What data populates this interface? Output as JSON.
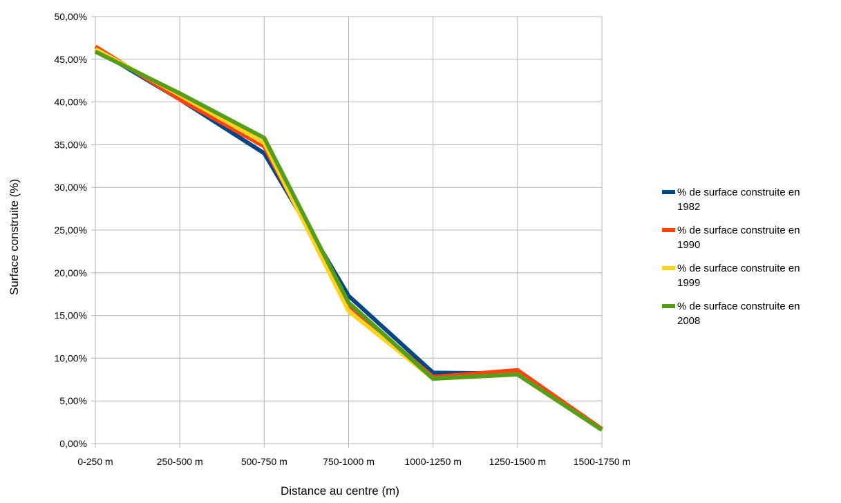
{
  "chart_data": {
    "type": "line",
    "title": "",
    "xlabel": "Distance au centre (m)",
    "ylabel": "Surface construite (%)",
    "categories": [
      "0-250 m",
      "250-500 m",
      "500-750 m",
      "750-1000 m",
      "1000-1250 m",
      "1250-1500 m",
      "1500-1750 m"
    ],
    "yticks": [
      "0,00%",
      "5,00%",
      "10,00%",
      "15,00%",
      "20,00%",
      "25,00%",
      "30,00%",
      "35,00%",
      "40,00%",
      "45,00%",
      "50,00%"
    ],
    "ylim": [
      0,
      50
    ],
    "grid": true,
    "legend_position": "right",
    "series": [
      {
        "name_line1": "% de surface construite en",
        "name_line2": "1982",
        "color": "#004586",
        "values": [
          46.2,
          40.3,
          34.0,
          17.3,
          8.3,
          8.2,
          1.6
        ]
      },
      {
        "name_line1": "% de surface construite en",
        "name_line2": "1990",
        "color": "#ff420e",
        "values": [
          46.5,
          40.3,
          34.8,
          16.2,
          7.8,
          8.6,
          1.7
        ]
      },
      {
        "name_line1": "% de surface construite en",
        "name_line2": "1999",
        "color": "#ffd320",
        "values": [
          46.2,
          40.8,
          35.2,
          15.5,
          7.6,
          8.1,
          1.6
        ]
      },
      {
        "name_line1": "% de surface construite en",
        "name_line2": "2008",
        "color": "#579d1c",
        "values": [
          45.9,
          41.0,
          35.8,
          16.5,
          7.6,
          8.1,
          1.6
        ]
      }
    ]
  }
}
